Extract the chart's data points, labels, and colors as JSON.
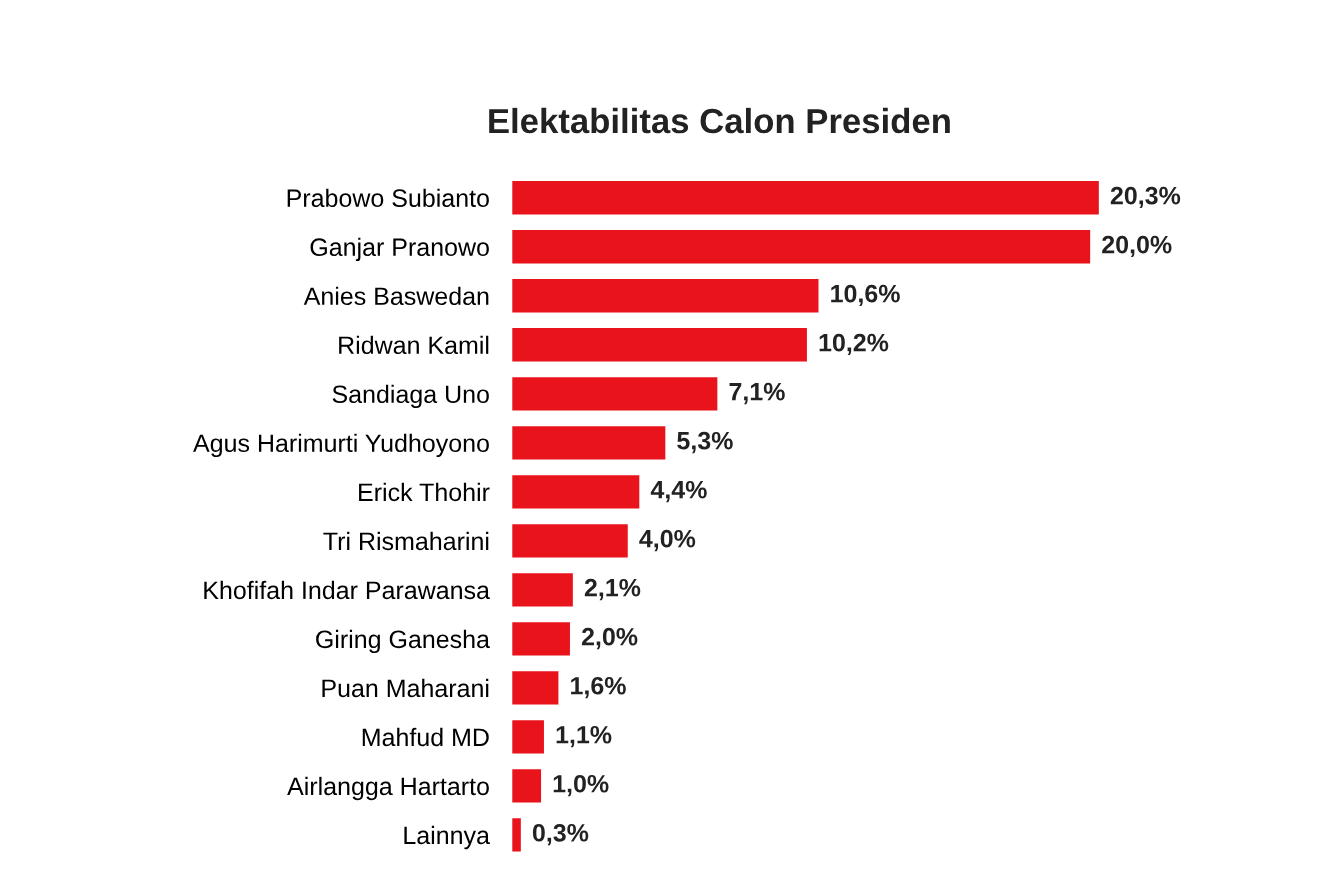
{
  "chart_data": {
    "type": "bar",
    "orientation": "horizontal",
    "title": "Elektabilitas Calon Presiden",
    "categories": [
      "Prabowo Subianto",
      "Ganjar Pranowo",
      "Anies Baswedan",
      "Ridwan Kamil",
      "Sandiaga Uno",
      "Agus Harimurti Yudhoyono",
      "Erick Thohir",
      "Tri Rismaharini",
      "Khofifah Indar Parawansa",
      "Giring Ganesha",
      "Puan Maharani",
      "Mahfud MD",
      "Airlangga Hartarto",
      "Lainnya"
    ],
    "values": [
      20.3,
      20.0,
      10.6,
      10.2,
      7.1,
      5.3,
      4.4,
      4.0,
      2.1,
      2.0,
      1.6,
      1.1,
      1.0,
      0.3
    ],
    "value_labels": [
      "20,3%",
      "20,0%",
      "10,6%",
      "10,2%",
      "7,1%",
      "5,3%",
      "4,4%",
      "4,0%",
      "2,1%",
      "2,0%",
      "1,6%",
      "1,1%",
      "1,0%",
      "0,3%"
    ],
    "color": "#e8131b",
    "grid": false,
    "legend": false
  }
}
